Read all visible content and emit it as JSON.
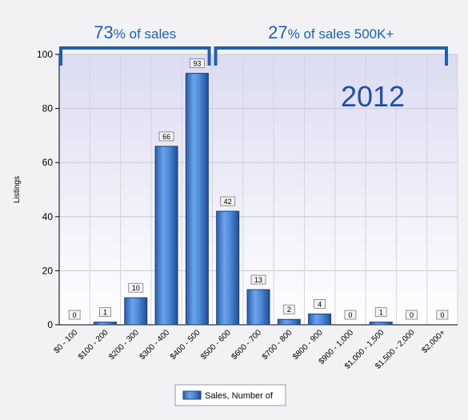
{
  "chart_data": {
    "type": "bar",
    "categories": [
      "$0 - 100",
      "$100 - 200",
      "$200 - 300",
      "$300 - 400",
      "$400 - 500",
      "$500 - 600",
      "$600 - 700",
      "$700 - 800",
      "$800 - 900",
      "$900 - 1,000",
      "$1,000 - 1,500",
      "$1,500 - 2,000",
      "$2,000+"
    ],
    "series": [
      {
        "name": "Sales, Number of",
        "values": [
          0,
          1,
          10,
          66,
          93,
          42,
          13,
          2,
          4,
          0,
          1,
          0,
          0
        ]
      }
    ],
    "ylabel": "Listings",
    "xlabel": "",
    "ylim": [
      0,
      100
    ],
    "yticks": [
      0,
      20,
      40,
      60,
      80,
      100
    ],
    "grid": true,
    "legend": "bottom-center",
    "annotations": {
      "left_bracket": {
        "number": "73",
        "text": "% of sales",
        "from_category": 0,
        "to_category": 4
      },
      "right_bracket": {
        "number": "27",
        "text": "% of sales 500K+",
        "from_category": 5,
        "to_category": 12
      },
      "year": "2012"
    },
    "colors": {
      "bar": "#4a86d8",
      "bracket": "#1f5fb0"
    }
  }
}
